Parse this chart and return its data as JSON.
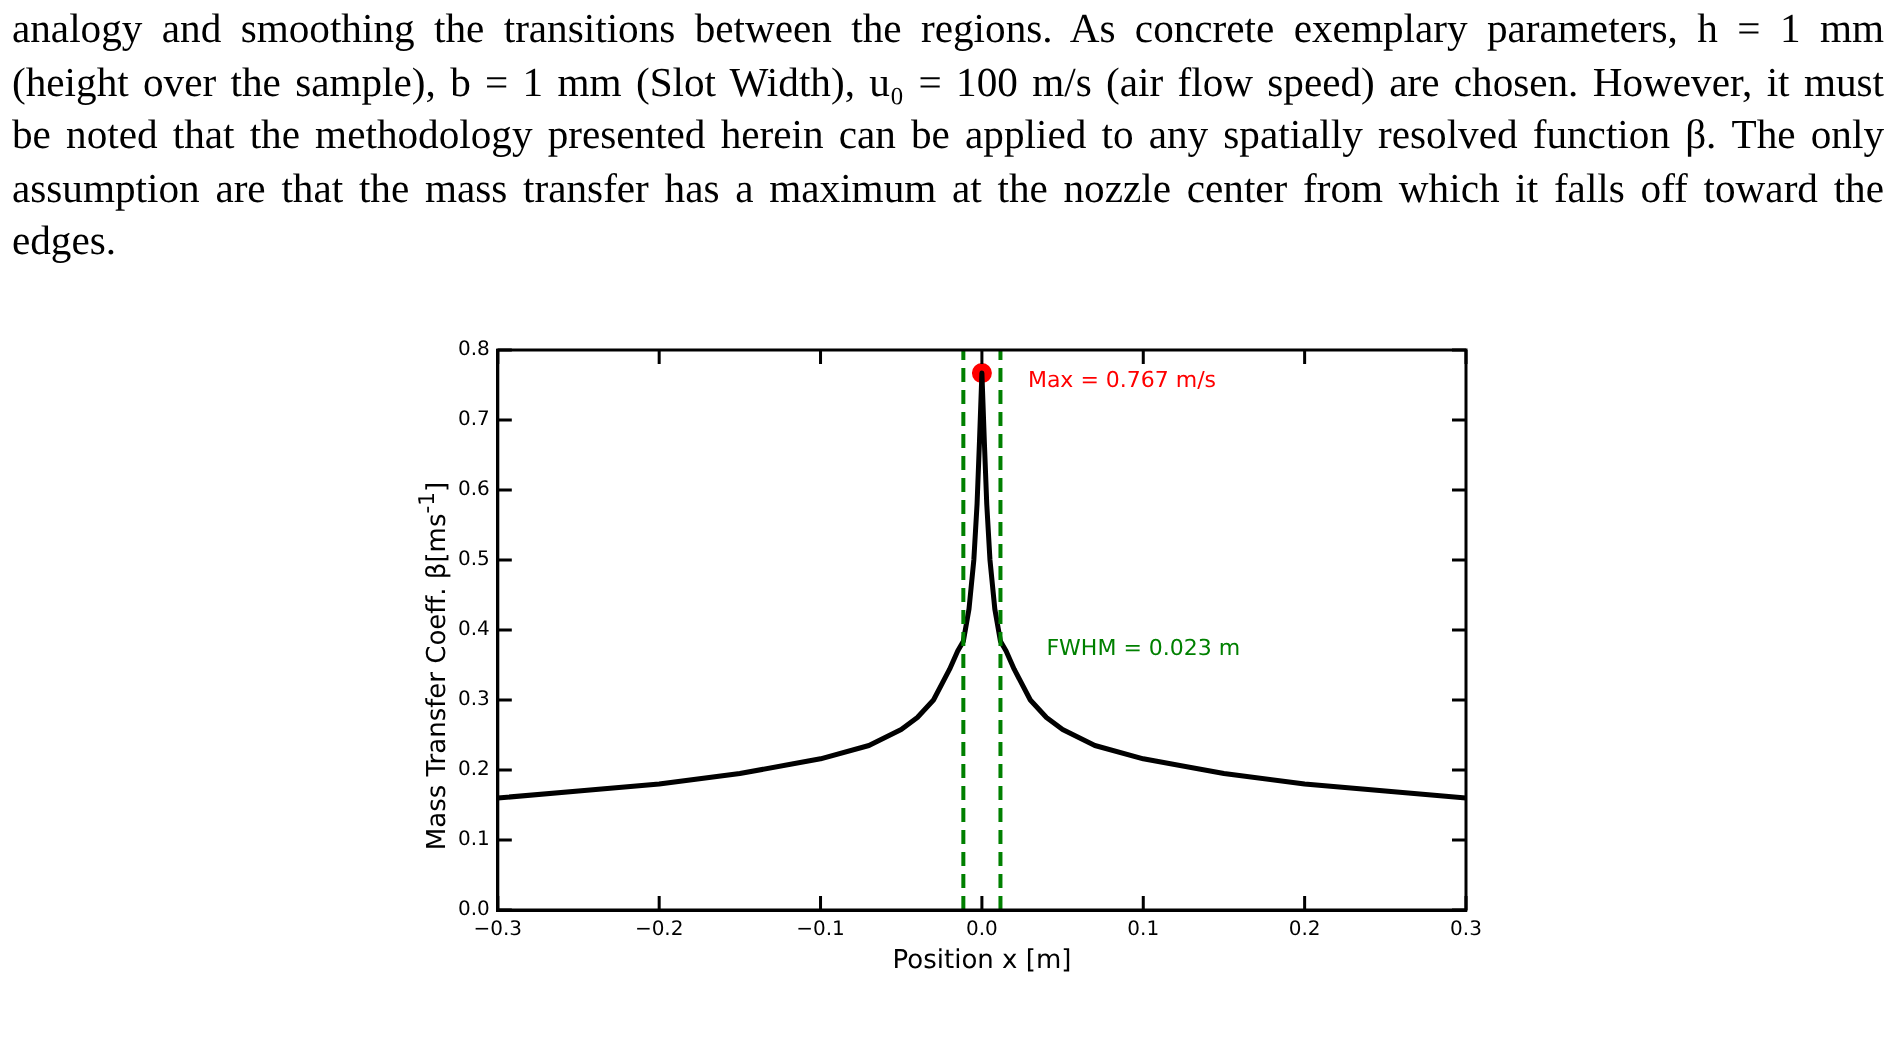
{
  "chart_data": {
    "type": "line",
    "xlabel": "Position x [m]",
    "ylabel": "Mass Transfer Coeff. β[ms$^{-1}$]",
    "annotations": [
      "analogy and smoothing the transitions between the regions. As concrete exemplary parameters, h = 1 mm (height over the sample), b = 1 mm (Slot Width), u₀ = 100 m/s (air flow speed) are chosen. However, it must be noted that the methodology presented herein can be applied to any spatially resolved function β. The only assumption are that the mass transfer has a maximum at the nozzle center from which it falls off toward the edges.",
      {
        "text": "Max = 0.767 m/s",
        "x": 0,
        "y": 0.767
      },
      {
        "text": "FWHM = 0.023 m",
        "x": 0.0115,
        "y": 0.384
      }
    ],
    "series": [
      {
        "type": "line",
        "color": "#000000",
        "x": [
          -0.3,
          -0.25,
          -0.2,
          -0.15,
          -0.1,
          -0.07,
          -0.05,
          -0.04,
          -0.03,
          -0.02,
          -0.015,
          -0.0115,
          -0.008,
          -0.005,
          -0.003,
          -0.0015,
          0,
          0.0015,
          0.003,
          0.005,
          0.008,
          0.0115,
          0.015,
          0.02,
          0.03,
          0.04,
          0.05,
          0.07,
          0.1,
          0.15,
          0.2,
          0.25,
          0.3
        ],
        "values": [
          0.16,
          0.17,
          0.18,
          0.195,
          0.216,
          0.235,
          0.258,
          0.275,
          0.3,
          0.344,
          0.37,
          0.384,
          0.43,
          0.5,
          0.58,
          0.67,
          0.767,
          0.67,
          0.58,
          0.5,
          0.43,
          0.384,
          0.37,
          0.344,
          0.3,
          0.275,
          0.258,
          0.235,
          0.216,
          0.195,
          0.18,
          0.17,
          0.16
        ]
      },
      {
        "type": "scatter",
        "color": "#ff0000",
        "x": [
          0
        ],
        "values": [
          0.767
        ]
      }
    ],
    "ref_lines": [
      {
        "axis": "x",
        "value": -0.0115,
        "color": "#008000",
        "line_style": "dashed"
      },
      {
        "axis": "x",
        "value": 0.0115,
        "color": "#008000",
        "line_style": "dashed"
      }
    ],
    "xlim": [
      -0.3,
      0.3
    ],
    "xticks": [
      {
        "value": -0.3,
        "label": "−0.3"
      },
      {
        "value": -0.2,
        "label": "−0.2"
      },
      {
        "value": -0.1,
        "label": "−0.1"
      },
      {
        "value": 0,
        "label": "0.0"
      },
      0.1,
      0.2,
      0.3
    ],
    "ylim": [
      0,
      0.8
    ],
    "yticks": [
      {
        "value": 0,
        "label": "0.0"
      },
      0.1,
      0.2,
      0.3,
      0.4,
      0.5,
      0.6,
      0.7,
      0.8
    ],
    "grid": false,
    "legend": false,
    "line_style": "solid"
  }
}
